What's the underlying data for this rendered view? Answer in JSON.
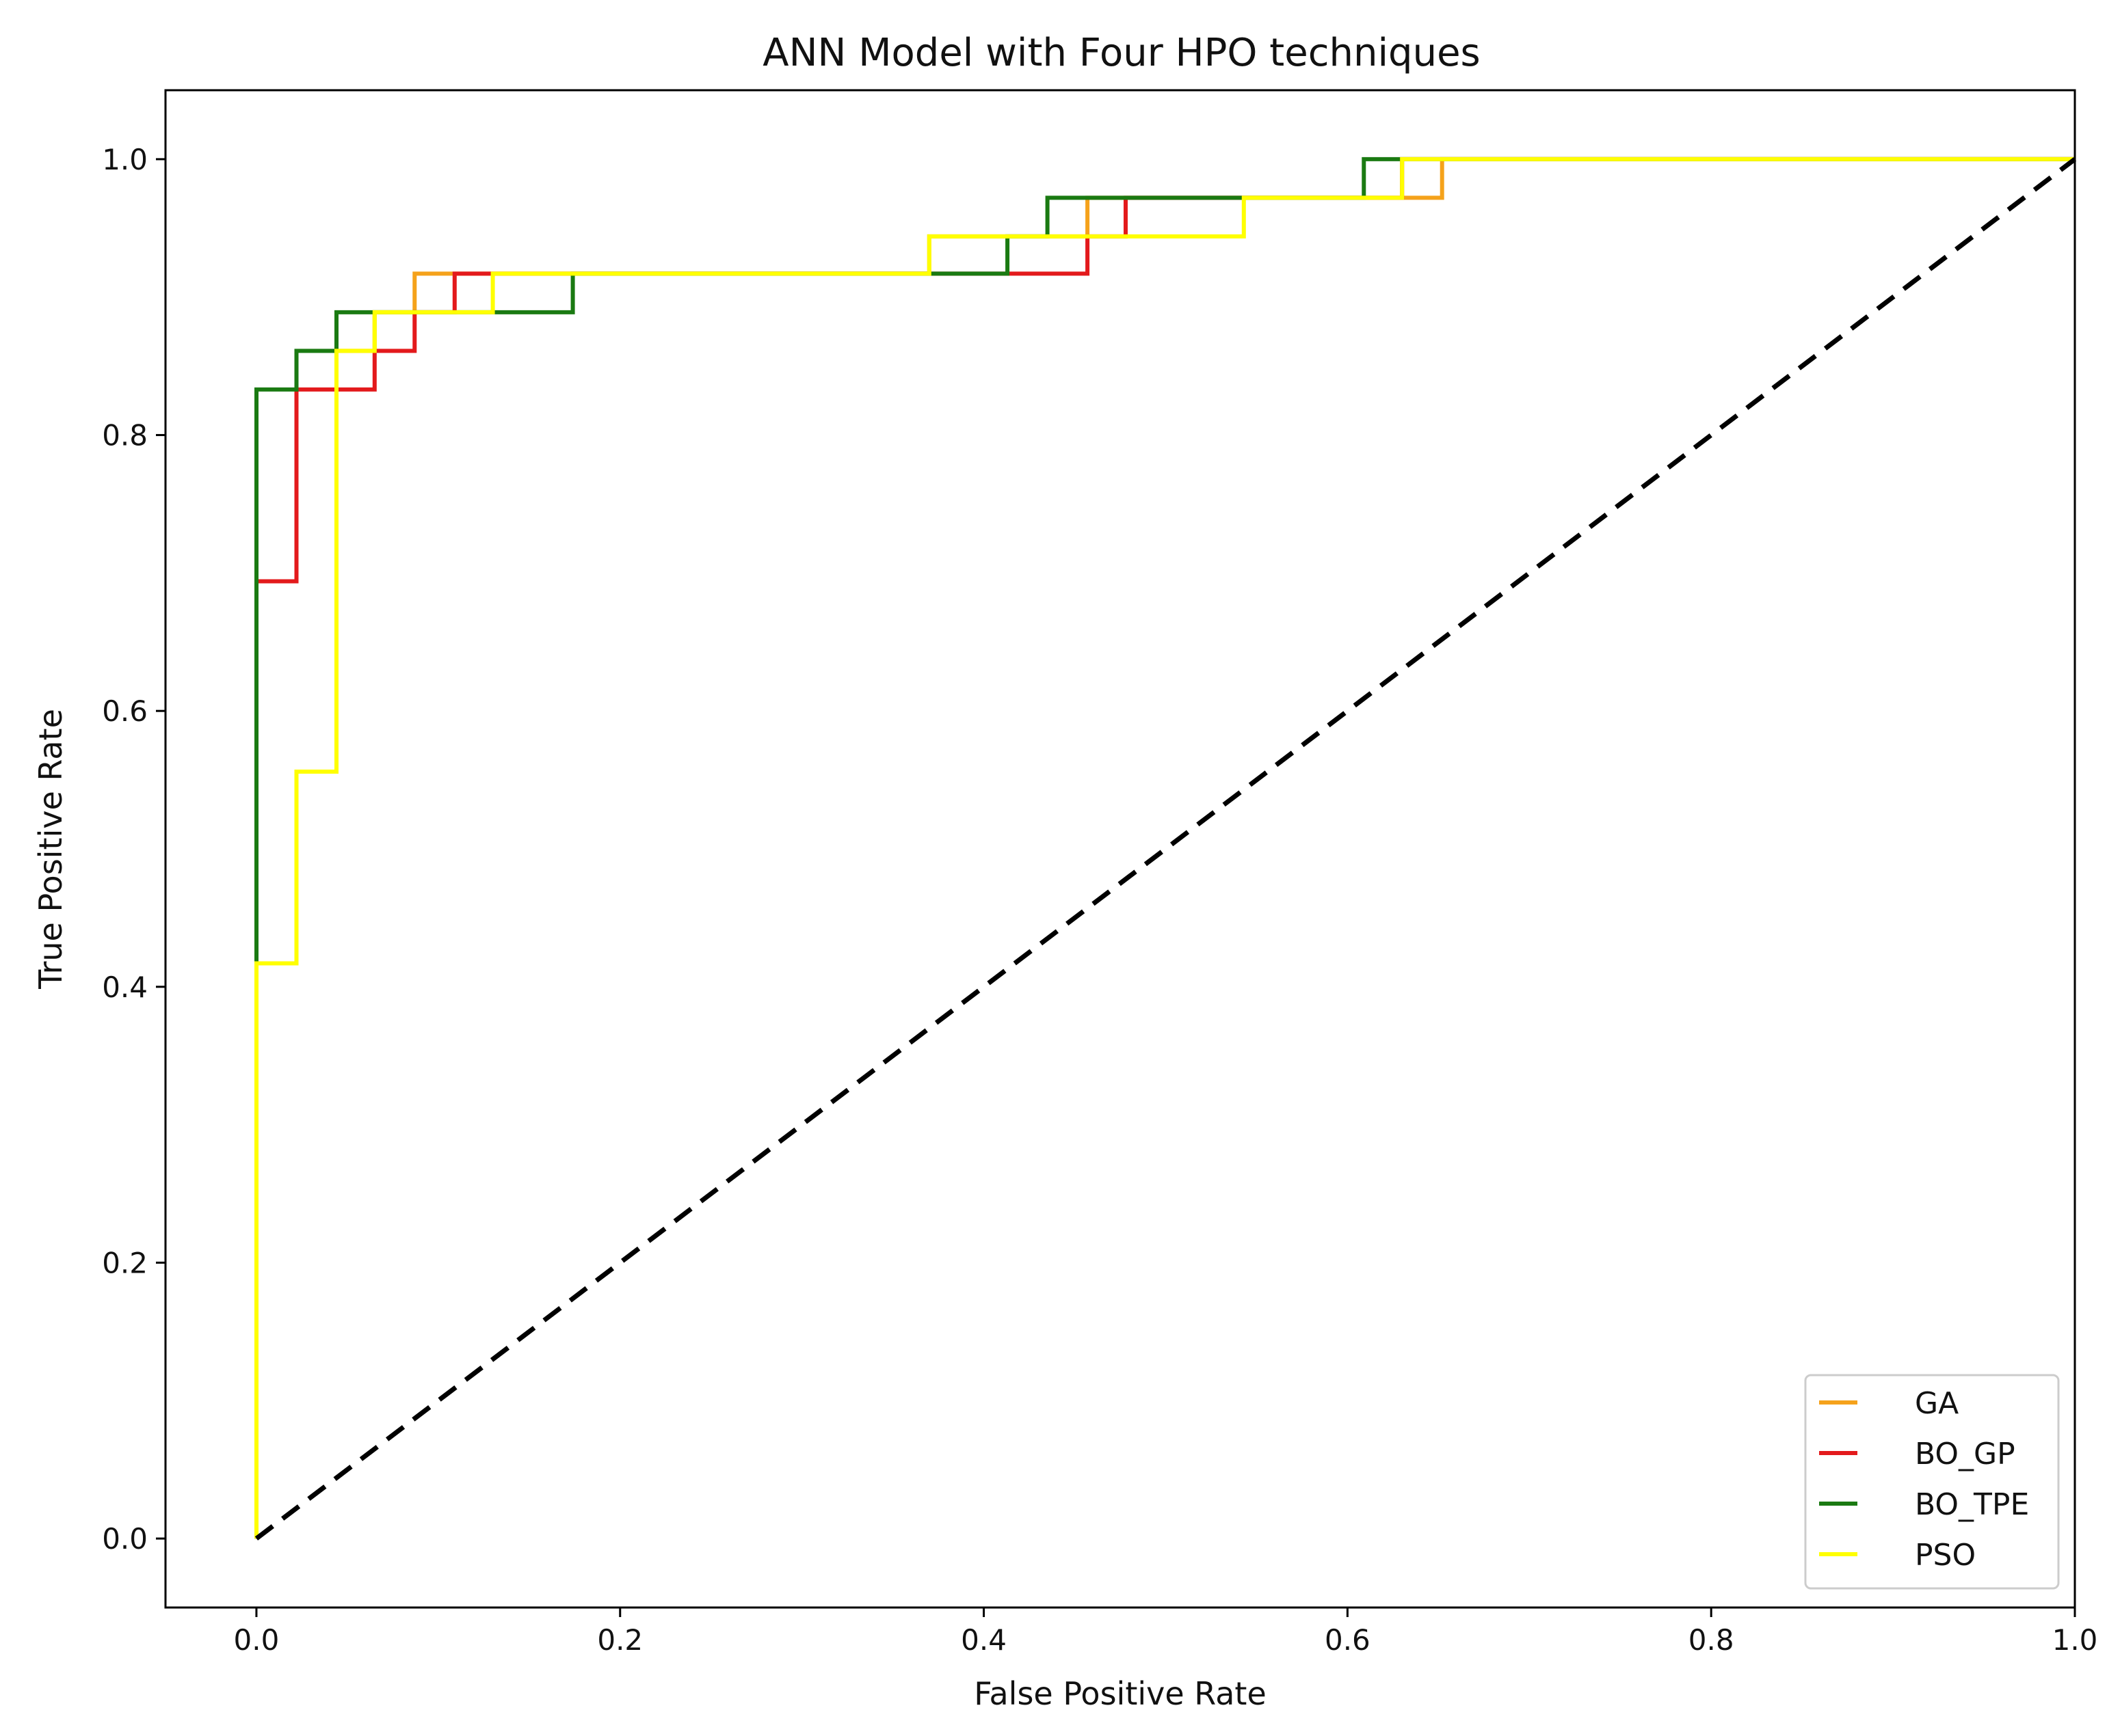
{
  "chart_data": {
    "type": "line",
    "title": "ANN Model with Four HPO techniques",
    "xlabel": "False Positive Rate",
    "ylabel": "True Positive Rate",
    "xlim": [
      -0.05,
      1.0
    ],
    "ylim": [
      -0.05,
      1.05
    ],
    "xticks": [
      "0.0",
      "0.2",
      "0.4",
      "0.6",
      "0.8",
      "1.0"
    ],
    "yticks": [
      "0.0",
      "0.2",
      "0.4",
      "0.6",
      "0.8",
      "1.0"
    ],
    "grid": false,
    "legend_position": "lower-right",
    "reference_line": {
      "style": "dashed",
      "color": "#000000",
      "x": [
        0,
        1
      ],
      "y": [
        0,
        1
      ]
    },
    "series": [
      {
        "name": "GA",
        "color": "#f5a21b",
        "x": [
          0,
          0,
          0.022,
          0.022,
          0.044,
          0.044,
          0.065,
          0.065,
          0.087,
          0.087,
          0.37,
          0.37,
          0.457,
          0.457,
          0.63,
          0.63,
          0.652,
          0.652,
          1.0
        ],
        "y": [
          0,
          0.417,
          0.417,
          0.556,
          0.556,
          0.861,
          0.861,
          0.889,
          0.889,
          0.917,
          0.917,
          0.944,
          0.944,
          0.972,
          0.972,
          0.972,
          0.972,
          1.0,
          1.0
        ]
      },
      {
        "name": "BO_GP",
        "color": "#e31a1c",
        "x": [
          0,
          0,
          0.022,
          0.022,
          0.065,
          0.065,
          0.087,
          0.087,
          0.109,
          0.109,
          0.413,
          0.413,
          0.457,
          0.457,
          0.478,
          0.478,
          0.63,
          0.63,
          1.0
        ],
        "y": [
          0,
          0.694,
          0.694,
          0.833,
          0.833,
          0.861,
          0.861,
          0.889,
          0.889,
          0.917,
          0.917,
          0.917,
          0.917,
          0.944,
          0.944,
          0.972,
          0.972,
          1.0,
          1.0
        ]
      },
      {
        "name": "BO_TPE",
        "color": "#1a7a12",
        "x": [
          0,
          0,
          0.022,
          0.022,
          0.044,
          0.044,
          0.174,
          0.174,
          0.413,
          0.413,
          0.435,
          0.435,
          0.609,
          0.609,
          1.0
        ],
        "y": [
          0,
          0.833,
          0.833,
          0.861,
          0.861,
          0.889,
          0.889,
          0.917,
          0.917,
          0.944,
          0.944,
          0.972,
          0.972,
          1.0,
          1.0
        ]
      },
      {
        "name": "PSO",
        "color": "#ffff00",
        "x": [
          0,
          0,
          0.022,
          0.022,
          0.044,
          0.044,
          0.065,
          0.065,
          0.13,
          0.13,
          0.37,
          0.37,
          0.543,
          0.543,
          0.63,
          0.63,
          1.0
        ],
        "y": [
          0,
          0.417,
          0.417,
          0.556,
          0.556,
          0.861,
          0.861,
          0.889,
          0.889,
          0.917,
          0.917,
          0.944,
          0.944,
          0.972,
          0.972,
          1.0,
          1.0
        ]
      }
    ]
  }
}
